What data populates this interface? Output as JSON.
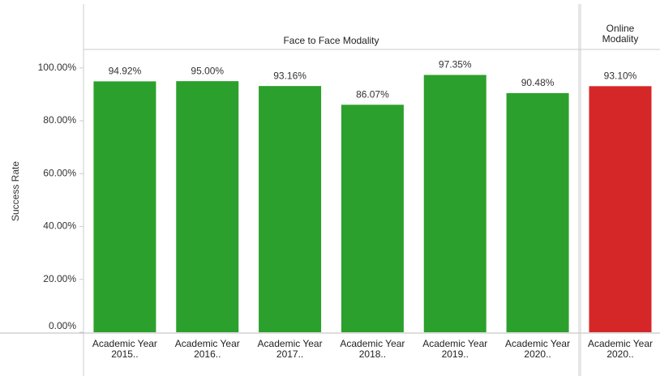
{
  "chart_data": {
    "type": "bar",
    "y_label": "Success Rate",
    "ylim": [
      0,
      107
    ],
    "yticks": [
      {
        "value": 0,
        "label": "0.00%"
      },
      {
        "value": 20,
        "label": "20.00%"
      },
      {
        "value": 40,
        "label": "40.00%"
      },
      {
        "value": 60,
        "label": "60.00%"
      },
      {
        "value": 80,
        "label": "80.00%"
      },
      {
        "value": 100,
        "label": "100.00%"
      }
    ],
    "panes": [
      {
        "title": "Face to Face Modality",
        "color": "#2ca02c",
        "categories": [
          "Academic Year 2015..",
          "Academic Year 2016..",
          "Academic Year 2017..",
          "Academic Year 2018..",
          "Academic Year 2019..",
          "Academic Year 2020.."
        ],
        "values": [
          94.92,
          95.0,
          93.16,
          86.07,
          97.35,
          90.48
        ],
        "value_labels": [
          "94.92%",
          "95.00%",
          "93.16%",
          "86.07%",
          "97.35%",
          "90.48%"
        ]
      },
      {
        "title": "Online Modality",
        "color": "#d62728",
        "categories": [
          "Academic Year 2020.."
        ],
        "values": [
          93.1
        ],
        "value_labels": [
          "93.10%"
        ]
      }
    ]
  }
}
